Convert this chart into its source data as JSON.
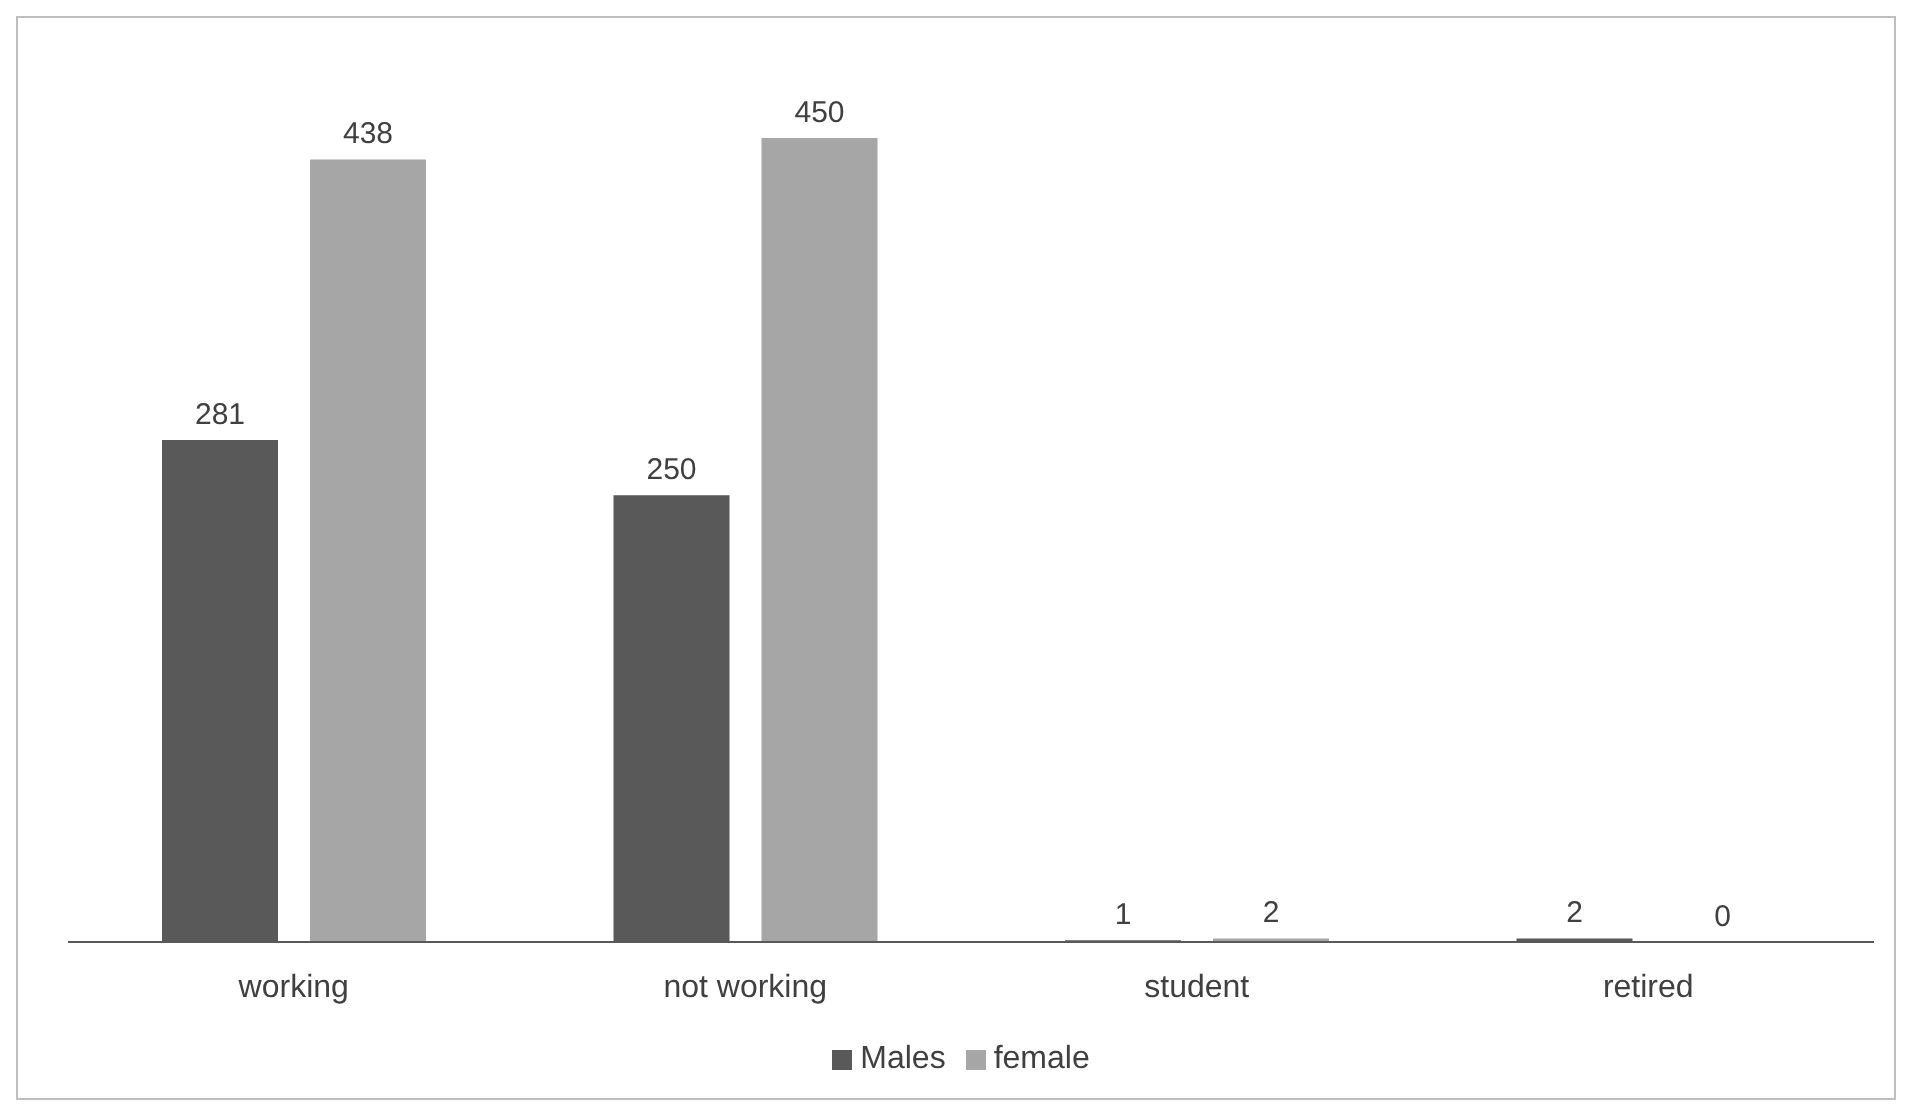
{
  "chart_data": {
    "type": "bar",
    "categories": [
      "working",
      "not working",
      "student",
      "retired"
    ],
    "series": [
      {
        "name": "Males",
        "color": "#595959",
        "values": [
          281,
          250,
          1,
          2
        ]
      },
      {
        "name": "female",
        "color": "#a6a6a6",
        "values": [
          438,
          450,
          2,
          0
        ]
      }
    ],
    "data_labels": true,
    "legend": "bottom",
    "grid": false
  }
}
